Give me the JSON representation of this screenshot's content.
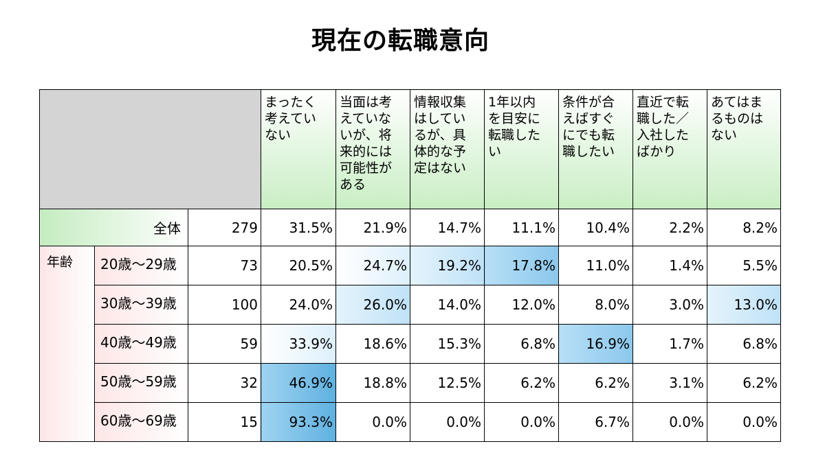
{
  "title": "現在の転職意向",
  "chart_data": {
    "type": "table",
    "columns": [
      "まったく\n考えてい\nない",
      "当面は考\nえていな\nいが、将\n来的には\n可能性が\nある",
      "情報収集\nはしてい\nるが、具\n体的な予\n定はない",
      "1年以内\nを目安に\n転職した\nい",
      "条件が合\nえばすぐ\nにでも転\n職したい",
      "直近で転\n職した／\n入社した\nばかり",
      "あてはま\nるものは\nない"
    ],
    "total": {
      "label": "全体",
      "n": "279",
      "values": [
        "31.5%",
        "21.9%",
        "14.7%",
        "11.1%",
        "10.4%",
        "2.2%",
        "8.2%"
      ]
    },
    "group_label": "年齢",
    "rows": [
      {
        "label": "20歳～29歳",
        "n": "73",
        "values": [
          "20.5%",
          "24.7%",
          "19.2%",
          "17.8%",
          "11.0%",
          "1.4%",
          "5.5%"
        ]
      },
      {
        "label": "30歳～39歳",
        "n": "100",
        "values": [
          "24.0%",
          "26.0%",
          "14.0%",
          "12.0%",
          "8.0%",
          "3.0%",
          "13.0%"
        ]
      },
      {
        "label": "40歳～49歳",
        "n": "59",
        "values": [
          "33.9%",
          "18.6%",
          "15.3%",
          "6.8%",
          "16.9%",
          "1.7%",
          "6.8%"
        ]
      },
      {
        "label": "50歳～59歳",
        "n": "32",
        "values": [
          "46.9%",
          "18.8%",
          "12.5%",
          "6.2%",
          "6.2%",
          "3.1%",
          "6.2%"
        ]
      },
      {
        "label": "60歳～69歳",
        "n": "15",
        "values": [
          "93.3%",
          "0.0%",
          "0.0%",
          "0.0%",
          "6.7%",
          "0.0%",
          "0.0%"
        ]
      }
    ],
    "highlight_colors": {
      "dark": "#6ab7e3",
      "light": "#d9eefb"
    }
  }
}
